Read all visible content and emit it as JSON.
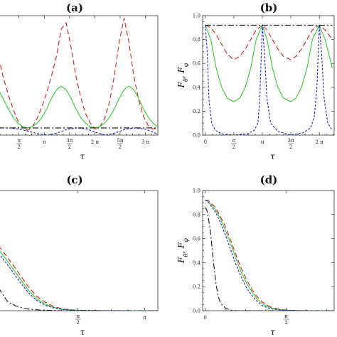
{
  "chart_data": [
    {
      "panel_label": "(a)",
      "type": "line",
      "xlabel": "τ",
      "ylabel": "",
      "xlim": [
        0.3,
        10.2
      ],
      "ylim": [
        0,
        1
      ],
      "xticks": [
        {
          "v": 1.5708,
          "t": "π/2"
        },
        {
          "v": 3.1416,
          "t": "π"
        },
        {
          "v": 4.7124,
          "t": "3π/2"
        },
        {
          "v": 6.2832,
          "t": "2 π"
        },
        {
          "v": 7.854,
          "t": "5π/2"
        },
        {
          "v": 9.4248,
          "t": "3 π"
        }
      ],
      "yticks": [],
      "series": [
        {
          "color": "#cc2222",
          "dash": "7,4",
          "x": [
            0.3,
            0.6,
            0.9,
            1.2,
            1.5,
            1.8,
            2.1,
            2.4,
            2.7,
            3.0,
            3.3,
            3.6,
            3.9,
            4.2,
            4.5,
            4.8,
            5.1,
            5.4,
            5.7,
            6.0,
            6.3,
            6.6,
            6.9,
            7.2,
            7.5,
            7.8,
            8.1,
            8.4,
            8.7,
            9.0,
            9.3,
            9.6,
            9.9,
            10.2
          ],
          "y": [
            0.65,
            0.48,
            0.34,
            0.22,
            0.12,
            0.06,
            0.04,
            0.07,
            0.14,
            0.24,
            0.36,
            0.5,
            0.66,
            0.89,
            0.94,
            0.74,
            0.5,
            0.32,
            0.18,
            0.1,
            0.05,
            0.07,
            0.14,
            0.28,
            0.5,
            0.78,
            0.98,
            0.78,
            0.5,
            0.3,
            0.16,
            0.08,
            0.05,
            0.06
          ]
        },
        {
          "color": "#33cc33",
          "dash": "",
          "x": [
            0.3,
            0.6,
            0.9,
            1.2,
            1.5,
            1.8,
            2.1,
            2.4,
            2.7,
            3.0,
            3.3,
            3.6,
            3.9,
            4.2,
            4.5,
            4.8,
            5.1,
            5.4,
            5.7,
            6.0,
            6.3,
            6.6,
            6.9,
            7.2,
            7.5,
            7.8,
            8.1,
            8.4,
            8.7,
            9.0,
            9.3,
            9.6,
            9.9,
            10.2
          ],
          "y": [
            0.38,
            0.3,
            0.22,
            0.15,
            0.1,
            0.07,
            0.06,
            0.07,
            0.1,
            0.15,
            0.22,
            0.31,
            0.38,
            0.41,
            0.38,
            0.31,
            0.22,
            0.15,
            0.1,
            0.07,
            0.06,
            0.07,
            0.1,
            0.15,
            0.22,
            0.31,
            0.38,
            0.41,
            0.38,
            0.31,
            0.22,
            0.15,
            0.1,
            0.07
          ]
        },
        {
          "color": "#2222cc",
          "dash": "3,2",
          "x": [
            0.3,
            1.0,
            1.6,
            2.2,
            2.8,
            3.4,
            4.0,
            4.6,
            5.2,
            5.8,
            6.4,
            7.0,
            7.6,
            8.2,
            8.8,
            9.4,
            10.0,
            10.2
          ],
          "y": [
            0.06,
            0.06,
            0.05,
            0.03,
            0.01,
            0.0,
            0.02,
            0.05,
            0.06,
            0.05,
            0.02,
            0.0,
            0.02,
            0.05,
            0.06,
            0.05,
            0.02,
            0.0
          ]
        },
        {
          "color": "#111111",
          "dash": "8,3,2,3",
          "x": [
            0.3,
            10.2
          ],
          "y": [
            0.06,
            0.06
          ]
        }
      ]
    },
    {
      "panel_label": "(b)",
      "type": "line",
      "xlabel": "τ",
      "ylabel": "F_θ, F_φ",
      "xlim": [
        -0.15,
        7.1
      ],
      "ylim": [
        0,
        1.0
      ],
      "xticks": [
        {
          "v": 0,
          "t": "0"
        },
        {
          "v": 1.5708,
          "t": "π/2"
        },
        {
          "v": 3.1416,
          "t": "π"
        },
        {
          "v": 4.7124,
          "t": "3π/2"
        },
        {
          "v": 6.2832,
          "t": "2 π"
        }
      ],
      "yticks": [
        {
          "v": 0,
          "t": "0.0"
        },
        {
          "v": 0.2,
          "t": "0.2"
        },
        {
          "v": 0.4,
          "t": "0.4"
        },
        {
          "v": 0.6,
          "t": "0.6"
        },
        {
          "v": 0.8,
          "t": "0.8"
        },
        {
          "v": 1.0,
          "t": "1.0"
        }
      ],
      "series": [
        {
          "color": "#cc2222",
          "dash": "7,4",
          "x": [
            0,
            0.3,
            0.6,
            0.9,
            1.2,
            1.5708,
            1.9,
            2.2,
            2.5,
            2.8,
            3.1416,
            3.4,
            3.7,
            4.0,
            4.3,
            4.7124,
            5.0,
            5.3,
            5.6,
            5.9,
            6.2832,
            6.6,
            7.0
          ],
          "y": [
            0.92,
            0.9,
            0.84,
            0.76,
            0.68,
            0.63,
            0.66,
            0.72,
            0.8,
            0.88,
            0.92,
            0.88,
            0.8,
            0.72,
            0.66,
            0.63,
            0.66,
            0.72,
            0.8,
            0.88,
            0.92,
            0.88,
            0.8
          ]
        },
        {
          "color": "#33cc33",
          "dash": "",
          "x": [
            0,
            0.3,
            0.6,
            0.9,
            1.2,
            1.5708,
            1.9,
            2.2,
            2.5,
            2.8,
            3.1416,
            3.4,
            3.7,
            4.0,
            4.3,
            4.7124,
            5.0,
            5.3,
            5.6,
            5.9,
            6.2832,
            6.6,
            7.0
          ],
          "y": [
            0.92,
            0.8,
            0.56,
            0.4,
            0.31,
            0.28,
            0.31,
            0.4,
            0.56,
            0.8,
            0.92,
            0.8,
            0.56,
            0.4,
            0.31,
            0.28,
            0.31,
            0.4,
            0.56,
            0.8,
            0.92,
            0.8,
            0.56
          ]
        },
        {
          "color": "#2222cc",
          "dash": "3,2",
          "x": [
            0,
            0.1,
            0.2,
            0.35,
            0.55,
            0.9,
            1.5708,
            2.3,
            2.7,
            2.9,
            3.0,
            3.1416,
            3.25,
            3.4,
            3.6,
            4.0,
            4.7124,
            5.4,
            5.8,
            6.0,
            6.15,
            6.2832,
            6.4,
            6.55,
            6.75,
            7.0
          ],
          "y": [
            0.92,
            0.7,
            0.3,
            0.1,
            0.04,
            0.01,
            0.0,
            0.01,
            0.04,
            0.1,
            0.3,
            0.92,
            0.7,
            0.3,
            0.1,
            0.03,
            0.0,
            0.02,
            0.06,
            0.15,
            0.4,
            0.92,
            0.7,
            0.3,
            0.1,
            0.04
          ]
        },
        {
          "color": "#111111",
          "dash": "8,3,2,3",
          "x": [
            0,
            7.0
          ],
          "y": [
            0.92,
            0.92
          ]
        }
      ]
    },
    {
      "panel_label": "(c)",
      "type": "line",
      "xlabel": "τ",
      "ylabel": "",
      "xlim": [
        -0.3,
        3.45
      ],
      "ylim": [
        0,
        1
      ],
      "xticks": [
        {
          "v": 1.5708,
          "t": "π/2"
        },
        {
          "v": 3.1416,
          "t": "π"
        }
      ],
      "yticks": [],
      "series": [
        {
          "color": "#cc2222",
          "dash": "7,4",
          "x": [
            -0.3,
            0.0,
            0.2,
            0.4,
            0.6,
            0.8,
            1.0,
            1.2,
            1.5,
            1.8,
            2.2,
            3.45
          ],
          "y": [
            0.54,
            0.4,
            0.3,
            0.2,
            0.12,
            0.07,
            0.035,
            0.015,
            0.005,
            0.002,
            0.0,
            0.0
          ]
        },
        {
          "color": "#33cc33",
          "dash": "",
          "x": [
            -0.3,
            0.0,
            0.2,
            0.4,
            0.6,
            0.8,
            1.0,
            1.2,
            1.5,
            1.8,
            2.2,
            3.45
          ],
          "y": [
            0.51,
            0.37,
            0.27,
            0.17,
            0.1,
            0.055,
            0.028,
            0.012,
            0.004,
            0.001,
            0.0,
            0.0
          ]
        },
        {
          "color": "#2222cc",
          "dash": "3,2",
          "x": [
            -0.3,
            0.0,
            0.2,
            0.4,
            0.6,
            0.8,
            1.0,
            1.2,
            1.5,
            1.8,
            2.2,
            3.45
          ],
          "y": [
            0.48,
            0.34,
            0.24,
            0.15,
            0.085,
            0.045,
            0.022,
            0.01,
            0.003,
            0.001,
            0.0,
            0.0
          ]
        },
        {
          "color": "#111111",
          "dash": "8,3,2,3",
          "x": [
            -0.3,
            -0.1,
            0.1,
            0.3,
            0.5,
            0.7,
            0.9,
            1.2,
            3.45
          ],
          "y": [
            0.19,
            0.08,
            0.04,
            0.02,
            0.01,
            0.005,
            0.002,
            0.0,
            0.0
          ]
        }
      ]
    },
    {
      "panel_label": "(d)",
      "type": "line",
      "xlabel": "τ",
      "ylabel": "F_θ, F_φ",
      "xlim": [
        -0.05,
        2.5
      ],
      "ylim": [
        0,
        1.0
      ],
      "xticks": [
        {
          "v": 0,
          "t": "0"
        },
        {
          "v": 1.5708,
          "t": "π/2"
        }
      ],
      "yticks": [
        {
          "v": 0,
          "t": "0.0"
        },
        {
          "v": 0.2,
          "t": "0.2"
        },
        {
          "v": 0.4,
          "t": "0.4"
        },
        {
          "v": 0.6,
          "t": "0.6"
        },
        {
          "v": 0.8,
          "t": "0.8"
        },
        {
          "v": 1.0,
          "t": "1.0"
        }
      ],
      "series": [
        {
          "color": "#cc2222",
          "dash": "7,4",
          "x": [
            0,
            0.05,
            0.1,
            0.2,
            0.3,
            0.4,
            0.5,
            0.6,
            0.7,
            0.8,
            0.9,
            1.0,
            1.1,
            1.2,
            1.3,
            1.5,
            1.7,
            2.0,
            2.5
          ],
          "y": [
            0.92,
            0.92,
            0.9,
            0.86,
            0.78,
            0.69,
            0.58,
            0.46,
            0.35,
            0.26,
            0.18,
            0.12,
            0.075,
            0.045,
            0.025,
            0.008,
            0.002,
            0.0,
            0.0
          ]
        },
        {
          "color": "#33cc33",
          "dash": "",
          "x": [
            0,
            0.05,
            0.1,
            0.2,
            0.3,
            0.4,
            0.5,
            0.6,
            0.7,
            0.8,
            0.9,
            1.0,
            1.1,
            1.2,
            1.3,
            1.5,
            1.7,
            2.0,
            2.5
          ],
          "y": [
            0.92,
            0.91,
            0.89,
            0.84,
            0.76,
            0.66,
            0.55,
            0.43,
            0.32,
            0.23,
            0.16,
            0.1,
            0.06,
            0.035,
            0.02,
            0.006,
            0.001,
            0.0,
            0.0
          ]
        },
        {
          "color": "#2222cc",
          "dash": "3,2",
          "x": [
            0,
            0.05,
            0.1,
            0.2,
            0.3,
            0.4,
            0.5,
            0.6,
            0.7,
            0.8,
            0.9,
            1.0,
            1.1,
            1.2,
            1.3,
            1.5,
            1.7,
            2.0,
            2.5
          ],
          "y": [
            0.92,
            0.91,
            0.88,
            0.82,
            0.73,
            0.62,
            0.5,
            0.38,
            0.28,
            0.19,
            0.13,
            0.08,
            0.045,
            0.025,
            0.013,
            0.004,
            0.001,
            0.0,
            0.0
          ]
        },
        {
          "color": "#111111",
          "dash": "8,3,2,3",
          "x": [
            0,
            0.03,
            0.06,
            0.1,
            0.15,
            0.2,
            0.25,
            0.3,
            0.4,
            0.5,
            0.6,
            2.5
          ],
          "y": [
            0.86,
            0.84,
            0.78,
            0.66,
            0.45,
            0.25,
            0.12,
            0.06,
            0.02,
            0.005,
            0.0,
            0.0
          ]
        }
      ]
    }
  ]
}
